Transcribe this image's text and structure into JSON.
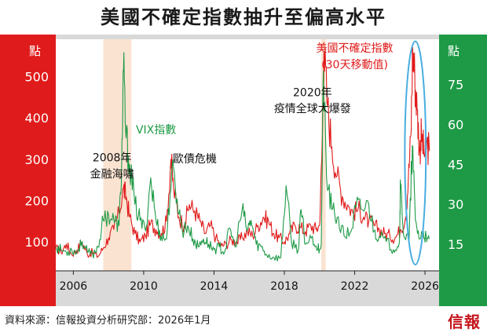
{
  "title": "美國不確定指數抽升至偏高水平",
  "source": "資料來源：信報投資分析研究部：2026年1月",
  "logo": "信報",
  "colors": {
    "left_axis_bg": "#e01b1b",
    "right_axis_bg": "#1e9a46",
    "plot_bg": "#ffffff",
    "frame_bg": "#d9d9d9",
    "crisis_band": "#fbe3d2",
    "red_series": "#e01b1b",
    "green_series": "#1e9a46",
    "highlight_ellipse": "#49aee0"
  },
  "chart_data": {
    "type": "line",
    "xlim": [
      2005.0,
      2026.8
    ],
    "x_ticks": [
      "2006",
      "2010",
      "2014",
      "2018",
      "2022",
      "2026"
    ],
    "y_left": {
      "unit": "點",
      "ylim": [
        30,
        590
      ],
      "ticks": [
        100,
        200,
        300,
        400,
        500
      ]
    },
    "y_right": {
      "unit": "點",
      "ylim": [
        5,
        92
      ],
      "ticks": [
        15,
        30,
        45,
        60,
        75
      ]
    },
    "shaded_periods": [
      [
        2007.7,
        2009.3
      ],
      [
        2020.1,
        2020.35
      ]
    ],
    "series": [
      {
        "name": "美國不確定指數(30天移動值)",
        "axis": "left",
        "points": [
          [
            2005.0,
            85
          ],
          [
            2005.3,
            75
          ],
          [
            2005.6,
            95
          ],
          [
            2005.9,
            70
          ],
          [
            2006.2,
            80
          ],
          [
            2006.5,
            100
          ],
          [
            2006.8,
            70
          ],
          [
            2007.1,
            75
          ],
          [
            2007.4,
            65
          ],
          [
            2007.7,
            85
          ],
          [
            2008.0,
            110
          ],
          [
            2008.3,
            130
          ],
          [
            2008.6,
            170
          ],
          [
            2008.85,
            230
          ],
          [
            2009.0,
            210
          ],
          [
            2009.2,
            160
          ],
          [
            2009.5,
            120
          ],
          [
            2009.8,
            100
          ],
          [
            2010.1,
            115
          ],
          [
            2010.4,
            145
          ],
          [
            2010.7,
            130
          ],
          [
            2011.0,
            120
          ],
          [
            2011.3,
            150
          ],
          [
            2011.55,
            300
          ],
          [
            2011.7,
            230
          ],
          [
            2012.0,
            160
          ],
          [
            2012.3,
            140
          ],
          [
            2012.6,
            190
          ],
          [
            2012.9,
            175
          ],
          [
            2013.2,
            150
          ],
          [
            2013.5,
            120
          ],
          [
            2013.8,
            140
          ],
          [
            2014.1,
            110
          ],
          [
            2014.4,
            90
          ],
          [
            2014.7,
            95
          ],
          [
            2015.0,
            105
          ],
          [
            2015.3,
            100
          ],
          [
            2015.6,
            110
          ],
          [
            2015.9,
            125
          ],
          [
            2016.2,
            115
          ],
          [
            2016.5,
            140
          ],
          [
            2016.8,
            160
          ],
          [
            2017.1,
            150
          ],
          [
            2017.4,
            120
          ],
          [
            2017.7,
            110
          ],
          [
            2018.0,
            100
          ],
          [
            2018.3,
            120
          ],
          [
            2018.6,
            140
          ],
          [
            2018.9,
            135
          ],
          [
            2019.2,
            125
          ],
          [
            2019.5,
            140
          ],
          [
            2019.8,
            130
          ],
          [
            2020.0,
            140
          ],
          [
            2020.15,
            330
          ],
          [
            2020.25,
            560
          ],
          [
            2020.45,
            430
          ],
          [
            2020.7,
            330
          ],
          [
            2021.0,
            260
          ],
          [
            2021.3,
            210
          ],
          [
            2021.6,
            190
          ],
          [
            2021.9,
            170
          ],
          [
            2022.2,
            180
          ],
          [
            2022.5,
            160
          ],
          [
            2022.8,
            150
          ],
          [
            2023.1,
            140
          ],
          [
            2023.4,
            130
          ],
          [
            2023.7,
            120
          ],
          [
            2024.0,
            115
          ],
          [
            2024.3,
            110
          ],
          [
            2024.6,
            130
          ],
          [
            2024.9,
            160
          ],
          [
            2025.05,
            250
          ],
          [
            2025.2,
            360
          ],
          [
            2025.3,
            570
          ],
          [
            2025.42,
            500
          ],
          [
            2025.55,
            420
          ],
          [
            2025.7,
            320
          ],
          [
            2025.8,
            360
          ],
          [
            2025.95,
            310
          ],
          [
            2026.1,
            340
          ],
          [
            2026.25,
            320
          ]
        ]
      },
      {
        "name": "VIX指數",
        "axis": "right",
        "points": [
          [
            2005.0,
            14
          ],
          [
            2005.3,
            13
          ],
          [
            2005.6,
            12
          ],
          [
            2005.9,
            13
          ],
          [
            2006.2,
            12
          ],
          [
            2006.5,
            16
          ],
          [
            2006.8,
            12
          ],
          [
            2007.1,
            11
          ],
          [
            2007.4,
            14
          ],
          [
            2007.7,
            24
          ],
          [
            2008.0,
            26
          ],
          [
            2008.3,
            24
          ],
          [
            2008.6,
            22
          ],
          [
            2008.75,
            45
          ],
          [
            2008.85,
            80
          ],
          [
            2009.0,
            55
          ],
          [
            2009.2,
            45
          ],
          [
            2009.5,
            30
          ],
          [
            2009.8,
            24
          ],
          [
            2010.1,
            20
          ],
          [
            2010.4,
            40
          ],
          [
            2010.7,
            24
          ],
          [
            2011.0,
            18
          ],
          [
            2011.3,
            17
          ],
          [
            2011.6,
            43
          ],
          [
            2011.9,
            32
          ],
          [
            2012.2,
            20
          ],
          [
            2012.5,
            22
          ],
          [
            2012.8,
            17
          ],
          [
            2013.1,
            14
          ],
          [
            2013.4,
            17
          ],
          [
            2013.7,
            15
          ],
          [
            2014.0,
            13
          ],
          [
            2014.3,
            14
          ],
          [
            2014.6,
            12
          ],
          [
            2014.9,
            21
          ],
          [
            2015.2,
            14
          ],
          [
            2015.6,
            28
          ],
          [
            2015.9,
            20
          ],
          [
            2016.1,
            24
          ],
          [
            2016.4,
            15
          ],
          [
            2016.7,
            14
          ],
          [
            2017.0,
            11
          ],
          [
            2017.4,
            10
          ],
          [
            2017.8,
            10
          ],
          [
            2018.1,
            37
          ],
          [
            2018.4,
            16
          ],
          [
            2018.8,
            13
          ],
          [
            2018.95,
            28
          ],
          [
            2019.2,
            15
          ],
          [
            2019.6,
            18
          ],
          [
            2019.9,
            13
          ],
          [
            2020.1,
            15
          ],
          [
            2020.22,
            80
          ],
          [
            2020.4,
            40
          ],
          [
            2020.7,
            28
          ],
          [
            2021.0,
            25
          ],
          [
            2021.4,
            18
          ],
          [
            2021.8,
            20
          ],
          [
            2022.1,
            30
          ],
          [
            2022.4,
            28
          ],
          [
            2022.8,
            30
          ],
          [
            2023.1,
            20
          ],
          [
            2023.4,
            18
          ],
          [
            2023.8,
            16
          ],
          [
            2024.2,
            13
          ],
          [
            2024.55,
            16
          ],
          [
            2024.6,
            38
          ],
          [
            2024.8,
            18
          ],
          [
            2025.1,
            17
          ],
          [
            2025.28,
            52
          ],
          [
            2025.45,
            24
          ],
          [
            2025.7,
            17
          ],
          [
            2025.9,
            20
          ],
          [
            2026.1,
            16
          ],
          [
            2026.25,
            17
          ]
        ]
      }
    ],
    "annotations": [
      {
        "text": "2008年",
        "x": 2008.2,
        "y": 295,
        "axis": "left",
        "color": "#111111"
      },
      {
        "text": "金融海嘯",
        "x": 2008.2,
        "y": 255,
        "axis": "left",
        "color": "#111111"
      },
      {
        "text": "VIX指數",
        "x": 2010.7,
        "y": 362,
        "axis": "left",
        "color": "#1e9a46"
      },
      {
        "text": "歐債危機",
        "x": 2012.9,
        "y": 292,
        "axis": "left",
        "color": "#111111"
      },
      {
        "text": "2020年",
        "x": 2019.6,
        "y": 452,
        "axis": "left",
        "color": "#111111"
      },
      {
        "text": "疫情全球大爆發",
        "x": 2019.6,
        "y": 413,
        "axis": "left",
        "color": "#111111"
      },
      {
        "text": "美國不確定指數",
        "x": 2022.0,
        "y": 560,
        "axis": "left",
        "color": "#e01b1b"
      },
      {
        "text": "(30天移動值)",
        "x": 2022.0,
        "y": 520,
        "axis": "left",
        "color": "#e01b1b"
      }
    ],
    "highlight": {
      "shape": "ellipse",
      "x_range": [
        2024.85,
        2026.05
      ],
      "y_left_range": [
        45,
        585
      ]
    }
  }
}
